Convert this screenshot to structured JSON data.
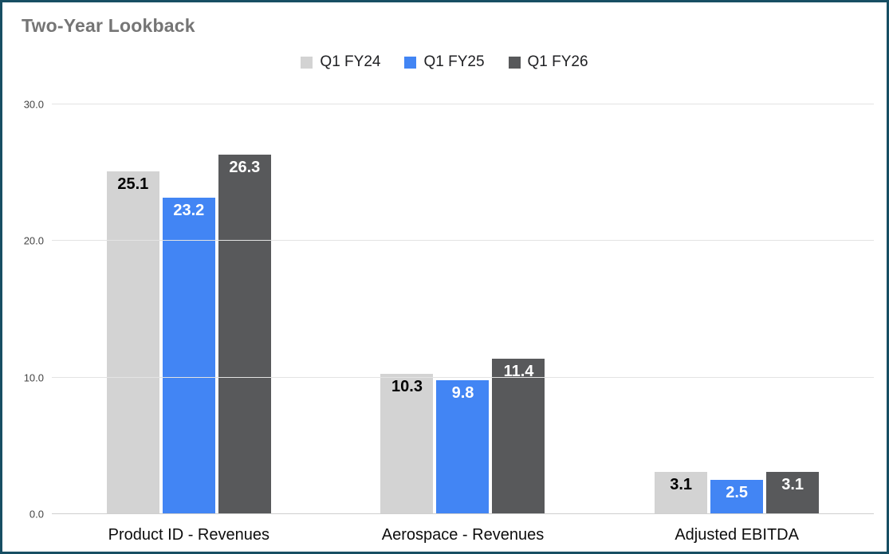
{
  "title": "Two-Year Lookback",
  "colors": {
    "frame_border": "#174e63",
    "title_text": "#757575",
    "gridline": "#e3e3e3",
    "axis_text": "#444444",
    "category_text": "#0d0d0d"
  },
  "chart_data": {
    "type": "bar",
    "title": "Two-Year Lookback",
    "categories": [
      "Product ID - Revenues",
      "Aerospace - Revenues",
      "Adjusted EBITDA"
    ],
    "series": [
      {
        "name": "Q1 FY24",
        "color": "#d3d3d3",
        "label_color": "#000000",
        "values": [
          25.1,
          10.3,
          3.1
        ]
      },
      {
        "name": "Q1 FY25",
        "color": "#4285f4",
        "label_color": "#ffffff",
        "values": [
          23.2,
          9.8,
          2.5
        ]
      },
      {
        "name": "Q1 FY26",
        "color": "#58595b",
        "label_color": "#ffffff",
        "values": [
          26.3,
          11.4,
          3.1
        ]
      }
    ],
    "xlabel": "",
    "ylabel": "",
    "ylim": [
      0,
      30
    ],
    "yticks": [
      "0.0",
      "10.0",
      "20.0",
      "30.0"
    ],
    "grid": true,
    "legend_position": "top"
  }
}
